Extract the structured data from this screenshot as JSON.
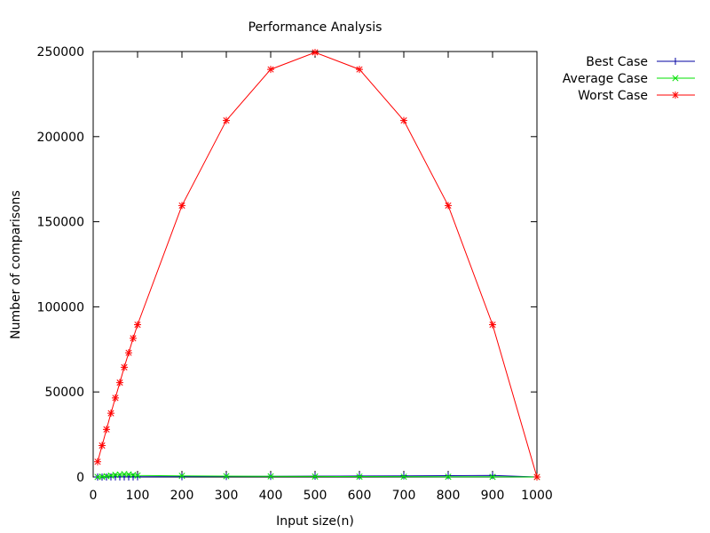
{
  "chart_data": {
    "type": "line",
    "title": "Performance Analysis",
    "xlabel": "Input size(n)",
    "ylabel": "Number of comparisons",
    "xlim": [
      0,
      1000
    ],
    "ylim": [
      0,
      250000
    ],
    "xticks": [
      "0",
      "100",
      "200",
      "300",
      "400",
      "500",
      "600",
      "700",
      "800",
      "900",
      "1000"
    ],
    "yticks": [
      "0",
      "50000",
      "100000",
      "150000",
      "200000",
      "250000"
    ],
    "grid": false,
    "legend_position": "outside-top-right",
    "x": [
      10,
      20,
      30,
      40,
      50,
      60,
      70,
      80,
      90,
      100,
      200,
      300,
      400,
      500,
      600,
      700,
      800,
      900,
      1000
    ],
    "series": [
      {
        "name": "Best Case",
        "color": "#0000a0",
        "marker": "plus",
        "values": [
          9,
          19,
          29,
          39,
          49,
          59,
          69,
          79,
          89,
          99,
          199,
          299,
          399,
          499,
          599,
          699,
          799,
          899,
          0
        ]
      },
      {
        "name": "Average Case",
        "color": "#00e000",
        "marker": "cross",
        "values": [
          60,
          220,
          480,
          850,
          1300,
          1500,
          1700,
          1600,
          1200,
          900,
          700,
          500,
          400,
          300,
          250,
          200,
          150,
          100,
          0
        ]
      },
      {
        "name": "Worst Case",
        "color": "#ff0000",
        "marker": "star",
        "values": [
          9000,
          18500,
          28000,
          37500,
          46500,
          55500,
          64500,
          73000,
          81500,
          89500,
          159500,
          209500,
          239500,
          249500,
          239500,
          209500,
          159500,
          89500,
          0
        ]
      }
    ]
  }
}
